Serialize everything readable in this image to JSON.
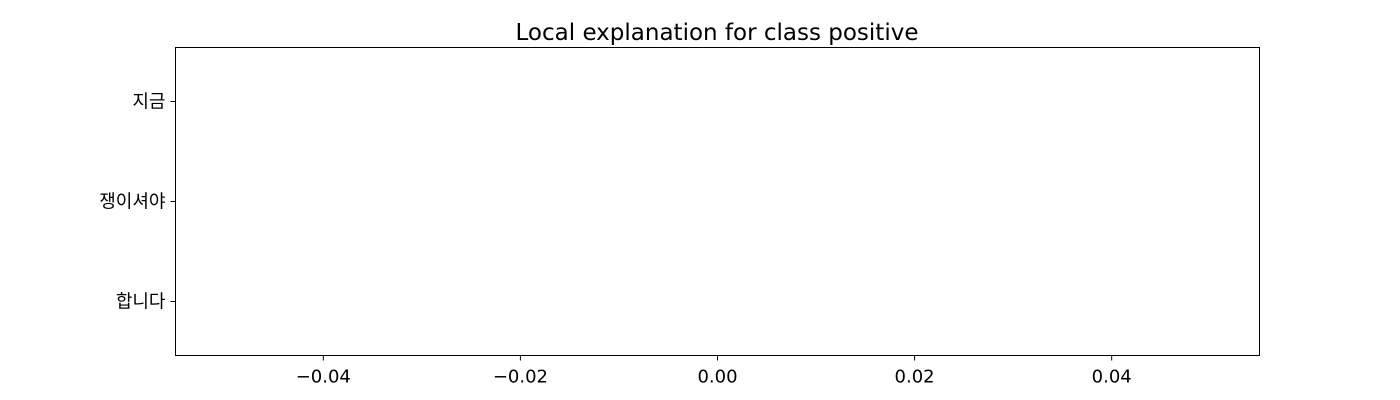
{
  "chart_data": {
    "type": "bar",
    "orientation": "horizontal",
    "title": "Local explanation for class positive",
    "xlabel": "",
    "ylabel": "",
    "categories": [
      "지금",
      "쟁이셔야",
      "합니다"
    ],
    "values": [
      0,
      0,
      0
    ],
    "xlim": [
      -0.055,
      0.055
    ],
    "xticks": [
      -0.04,
      -0.02,
      0.0,
      0.02,
      0.04
    ],
    "xtick_labels": [
      "−0.04",
      "−0.02",
      "0.00",
      "0.02",
      "0.04"
    ],
    "grid": false,
    "colors": {
      "axes": "#000000",
      "background": "#ffffff",
      "positive_bar": "#008000",
      "negative_bar": "#ff0000"
    }
  }
}
